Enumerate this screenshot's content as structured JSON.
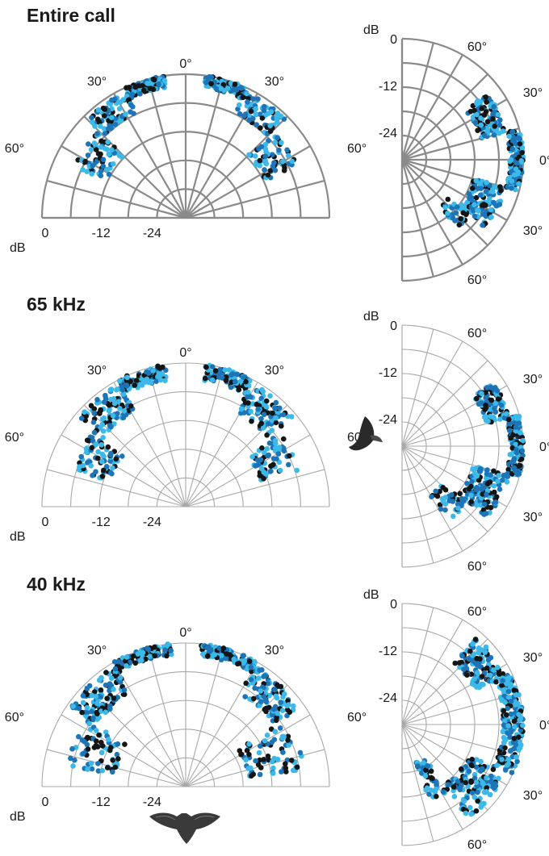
{
  "colors": {
    "black": "#151515",
    "mid_blue": "#1d75b8",
    "light_blue": "#3cb9e8",
    "grid_major": "#8a8a8a",
    "grid_minor": "#a8a8a8"
  },
  "icons": [
    "bat-side-icon",
    "bat-top-icon"
  ],
  "chart_data": [
    {
      "type": "scatter",
      "projection": "polar",
      "view": "horizontal",
      "title": "Entire call",
      "angle_labels": [
        "0°",
        "30°",
        "30°",
        "60°",
        "60°"
      ],
      "radial_ticks": [
        "0",
        "-12",
        "-24"
      ],
      "radial_unit": "dB",
      "angle_range_deg": [
        -90,
        90
      ],
      "r_range_db": [
        -36,
        0
      ],
      "grid": true,
      "series_colors": [
        "black",
        "mid_blue",
        "light_blue"
      ],
      "clusters": [
        {
          "angle_deg": [
            -25,
            -8
          ],
          "db": [
            -3,
            0
          ],
          "n": 90
        },
        {
          "angle_deg": [
            -45,
            -25
          ],
          "db": [
            -7,
            -1
          ],
          "n": 80
        },
        {
          "angle_deg": [
            -65,
            -45
          ],
          "db": [
            -14,
            -5
          ],
          "n": 60
        },
        {
          "angle_deg": [
            8,
            25
          ],
          "db": [
            -3,
            0
          ],
          "n": 90
        },
        {
          "angle_deg": [
            25,
            45
          ],
          "db": [
            -7,
            -1
          ],
          "n": 80
        },
        {
          "angle_deg": [
            45,
            65
          ],
          "db": [
            -14,
            -5
          ],
          "n": 60
        }
      ]
    },
    {
      "type": "scatter",
      "projection": "polar",
      "view": "vertical",
      "angle_labels": [
        "60°",
        "30°",
        "0°",
        "30°",
        "60°"
      ],
      "radial_ticks": [
        "0",
        "-12",
        "-24"
      ],
      "radial_unit": "dB",
      "angle_range_deg": [
        -90,
        90
      ],
      "r_range_db": [
        -36,
        0
      ],
      "grid": true,
      "series_colors": [
        "black",
        "mid_blue",
        "light_blue"
      ],
      "clusters": [
        {
          "angle_deg": [
            15,
            38
          ],
          "db": [
            -12,
            -4
          ],
          "n": 100
        },
        {
          "angle_deg": [
            0,
            15
          ],
          "db": [
            -4,
            0
          ],
          "n": 70
        },
        {
          "angle_deg": [
            -15,
            0
          ],
          "db": [
            -4,
            0
          ],
          "n": 70
        },
        {
          "angle_deg": [
            -40,
            -15
          ],
          "db": [
            -14,
            -4
          ],
          "n": 110
        },
        {
          "angle_deg": [
            -52,
            -40
          ],
          "db": [
            -18,
            -10
          ],
          "n": 30
        }
      ]
    },
    {
      "type": "scatter",
      "projection": "polar",
      "view": "horizontal",
      "title": "65 kHz",
      "angle_labels": [
        "0°",
        "30°",
        "30°",
        "60°",
        "60°"
      ],
      "radial_ticks": [
        "0",
        "-12",
        "-24"
      ],
      "radial_unit": "dB",
      "angle_range_deg": [
        -90,
        90
      ],
      "r_range_db": [
        -36,
        0
      ],
      "grid": true,
      "series_colors": [
        "black",
        "mid_blue",
        "light_blue"
      ],
      "clusters": [
        {
          "angle_deg": [
            -28,
            -8
          ],
          "db": [
            -4,
            0
          ],
          "n": 100
        },
        {
          "angle_deg": [
            -50,
            -28
          ],
          "db": [
            -9,
            -1
          ],
          "n": 90
        },
        {
          "angle_deg": [
            -72,
            -50
          ],
          "db": [
            -16,
            -6
          ],
          "n": 70
        },
        {
          "angle_deg": [
            8,
            28
          ],
          "db": [
            -4,
            0
          ],
          "n": 100
        },
        {
          "angle_deg": [
            28,
            50
          ],
          "db": [
            -9,
            -1
          ],
          "n": 90
        },
        {
          "angle_deg": [
            50,
            72
          ],
          "db": [
            -16,
            -6
          ],
          "n": 70
        }
      ]
    },
    {
      "type": "scatter",
      "projection": "polar",
      "view": "vertical",
      "angle_labels": [
        "60°",
        "30°",
        "0°",
        "30°",
        "60°"
      ],
      "radial_ticks": [
        "0",
        "-12",
        "-24"
      ],
      "radial_unit": "dB",
      "angle_range_deg": [
        -90,
        90
      ],
      "r_range_db": [
        -36,
        0
      ],
      "grid": true,
      "series_colors": [
        "black",
        "mid_blue",
        "light_blue"
      ],
      "clusters": [
        {
          "angle_deg": [
            15,
            35
          ],
          "db": [
            -10,
            -3
          ],
          "n": 110
        },
        {
          "angle_deg": [
            0,
            15
          ],
          "db": [
            -4,
            0
          ],
          "n": 60
        },
        {
          "angle_deg": [
            -15,
            0
          ],
          "db": [
            -4,
            0
          ],
          "n": 60
        },
        {
          "angle_deg": [
            -40,
            -15
          ],
          "db": [
            -14,
            -3
          ],
          "n": 130
        },
        {
          "angle_deg": [
            -60,
            -40
          ],
          "db": [
            -20,
            -10
          ],
          "n": 40
        }
      ]
    },
    {
      "type": "scatter",
      "projection": "polar",
      "view": "horizontal",
      "title": "40 kHz",
      "angle_labels": [
        "0°",
        "30°",
        "30°",
        "60°",
        "60°"
      ],
      "radial_ticks": [
        "0",
        "-12",
        "-24"
      ],
      "radial_unit": "dB",
      "angle_range_deg": [
        -90,
        90
      ],
      "r_range_db": [
        -36,
        0
      ],
      "grid": true,
      "series_colors": [
        "black",
        "mid_blue",
        "light_blue"
      ],
      "clusters": [
        {
          "angle_deg": [
            -30,
            -6
          ],
          "db": [
            -3,
            0
          ],
          "n": 100
        },
        {
          "angle_deg": [
            -55,
            -30
          ],
          "db": [
            -9,
            -1
          ],
          "n": 110
        },
        {
          "angle_deg": [
            -80,
            -55
          ],
          "db": [
            -18,
            -6
          ],
          "n": 70
        },
        {
          "angle_deg": [
            6,
            30
          ],
          "db": [
            -3,
            0
          ],
          "n": 100
        },
        {
          "angle_deg": [
            30,
            55
          ],
          "db": [
            -9,
            -1
          ],
          "n": 110
        },
        {
          "angle_deg": [
            55,
            82
          ],
          "db": [
            -20,
            -6
          ],
          "n": 80
        }
      ]
    },
    {
      "type": "scatter",
      "projection": "polar",
      "view": "vertical",
      "angle_labels": [
        "60°",
        "30°",
        "0°",
        "30°",
        "60°"
      ],
      "radial_ticks": [
        "0",
        "-12",
        "-24"
      ],
      "radial_unit": "dB",
      "angle_range_deg": [
        -90,
        90
      ],
      "r_range_db": [
        -36,
        0
      ],
      "grid": true,
      "series_colors": [
        "black",
        "mid_blue",
        "light_blue"
      ],
      "clusters": [
        {
          "angle_deg": [
            25,
            50
          ],
          "db": [
            -12,
            -2
          ],
          "n": 120
        },
        {
          "angle_deg": [
            0,
            25
          ],
          "db": [
            -6,
            0
          ],
          "n": 90
        },
        {
          "angle_deg": [
            -25,
            0
          ],
          "db": [
            -6,
            0
          ],
          "n": 90
        },
        {
          "angle_deg": [
            -55,
            -25
          ],
          "db": [
            -14,
            -2
          ],
          "n": 130
        },
        {
          "angle_deg": [
            -70,
            -55
          ],
          "db": [
            -24,
            -12
          ],
          "n": 50
        }
      ]
    }
  ]
}
